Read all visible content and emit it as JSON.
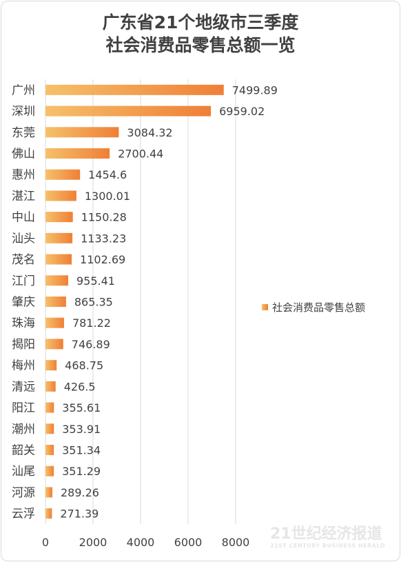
{
  "title": [
    "广东省21个地级市三季度",
    "社会消费品零售总额一览"
  ],
  "legend": "社会消费品零售总额",
  "colors": {
    "bar_start": "#f6c06a",
    "bar_end": "#ef7f36",
    "text": "#404040",
    "grid": "#d9d9d9"
  },
  "watermark": {
    "main": "21世纪经济报道",
    "sub": "21ST CENTURY BUSINESS HERALD"
  },
  "chart_data": {
    "type": "bar",
    "orientation": "horizontal",
    "categories": [
      "广州",
      "深圳",
      "东莞",
      "佛山",
      "惠州",
      "湛江",
      "中山",
      "汕头",
      "茂名",
      "江门",
      "肇庆",
      "珠海",
      "揭阳",
      "梅州",
      "清远",
      "阳江",
      "潮州",
      "韶关",
      "汕尾",
      "河源",
      "云浮"
    ],
    "series": [
      {
        "name": "社会消费品零售总额",
        "values": [
          7499.89,
          6959.02,
          3084.32,
          2700.44,
          1454.6,
          1300.01,
          1150.28,
          1133.23,
          1102.69,
          955.41,
          865.35,
          781.22,
          746.89,
          468.75,
          426.5,
          355.61,
          353.91,
          351.34,
          351.29,
          289.26,
          271.39
        ]
      }
    ],
    "value_labels": [
      "7499.89",
      "6959.02",
      "3084.32",
      "2700.44",
      "1454.6",
      "1300.01",
      "1150.28",
      "1133.23",
      "1102.69",
      "955.41",
      "865.35",
      "781.22",
      "746.89",
      "468.75",
      "426.5",
      "355.61",
      "353.91",
      "351.34",
      "351.29",
      "289.26",
      "271.39"
    ],
    "xlim": [
      0,
      8000
    ],
    "xticks": [
      0,
      2000,
      4000,
      6000,
      8000
    ],
    "grid": true,
    "legend_position": "right"
  }
}
